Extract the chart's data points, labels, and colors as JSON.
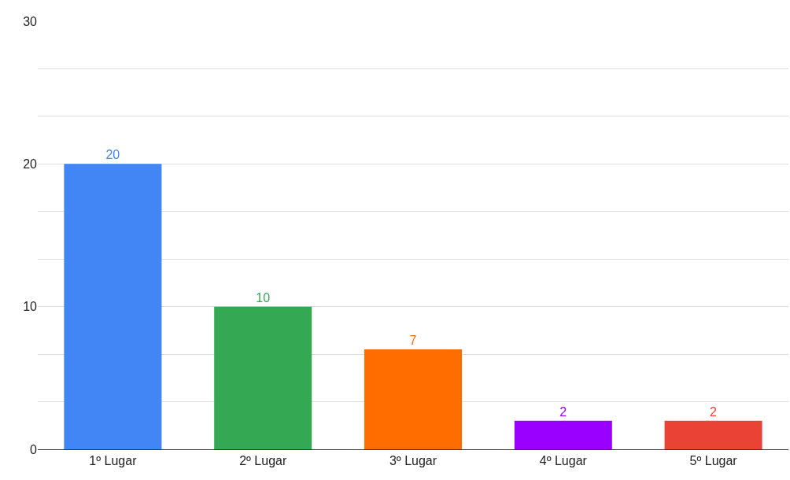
{
  "chart_data": {
    "type": "bar",
    "categories": [
      "1º Lugar",
      "2º Lugar",
      "3º Lugar",
      "4º Lugar",
      "5º Lugar"
    ],
    "values": [
      20,
      10,
      7,
      2,
      2
    ],
    "colors": [
      "#4285f4",
      "#34a853",
      "#ff6d01",
      "#9900ff",
      "#ea4335"
    ],
    "ylim": [
      0,
      30
    ],
    "yticks": [
      0,
      {
        "value": 3.33,
        "label": null
      },
      {
        "value": 6.67,
        "label": null
      },
      10,
      {
        "value": 13.33,
        "label": null
      },
      {
        "value": 16.67,
        "label": null
      },
      20,
      {
        "value": 23.33,
        "label": null
      },
      {
        "value": 26.67,
        "label": null
      },
      30
    ],
    "grid": "y",
    "data_labels": true
  }
}
